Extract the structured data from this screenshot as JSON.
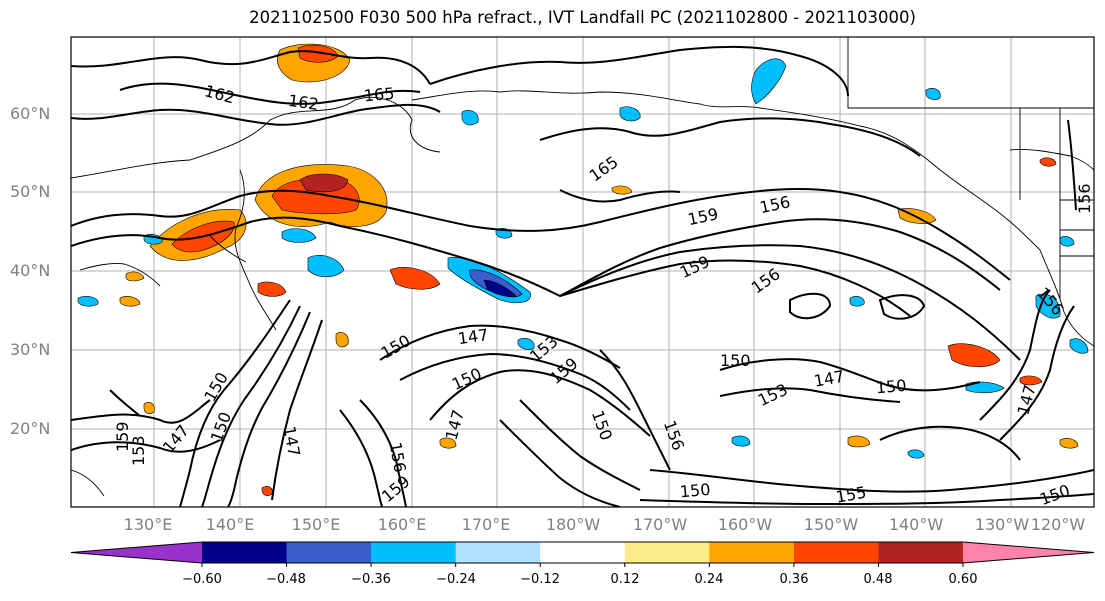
{
  "title": "2021102500 F030 500 hPa refract., IVT Landfall PC (2021102800 - 2021103000)",
  "lat_labels": [
    "60°N",
    "50°N",
    "40°N",
    "30°N",
    "20°N"
  ],
  "lon_labels": [
    "130°E",
    "140°E",
    "150°E",
    "160°E",
    "170°E",
    "180°W",
    "170°W",
    "160°W",
    "150°W",
    "140°W",
    "130°W",
    "120°W"
  ],
  "contour_labels": [
    "162",
    "165",
    "162",
    "165",
    "159",
    "156",
    "159",
    "156",
    "156",
    "150",
    "147",
    "150",
    "159",
    "153",
    "150",
    "153",
    "147",
    "150",
    "147",
    "156",
    "147",
    "150",
    "147",
    "159",
    "153",
    "150",
    "147",
    "156",
    "159",
    "150",
    "156",
    "150",
    "155",
    "150"
  ],
  "colorbar": {
    "ticks": [
      "−0.60",
      "−0.48",
      "−0.36",
      "−0.24",
      "−0.12",
      "0.12",
      "0.24",
      "0.36",
      "0.48",
      "0.60"
    ],
    "colors": [
      "#9932cc",
      "#00008b",
      "#3a5fcd",
      "#00bfff",
      "#b0e2ff",
      "#ffffff",
      "#ffec8b",
      "#ffa500",
      "#ff4500",
      "#b22222",
      "#ff82ab"
    ]
  },
  "fill_colors": {
    "neg_strong": "#3a5fcd",
    "neg_mid": "#00bfff",
    "neg_weak": "#b0e2ff",
    "pos_weak": "#ffec8b",
    "pos_mid": "#ffa500",
    "pos_strong": "#ff4500",
    "pos_max": "#b22222"
  }
}
